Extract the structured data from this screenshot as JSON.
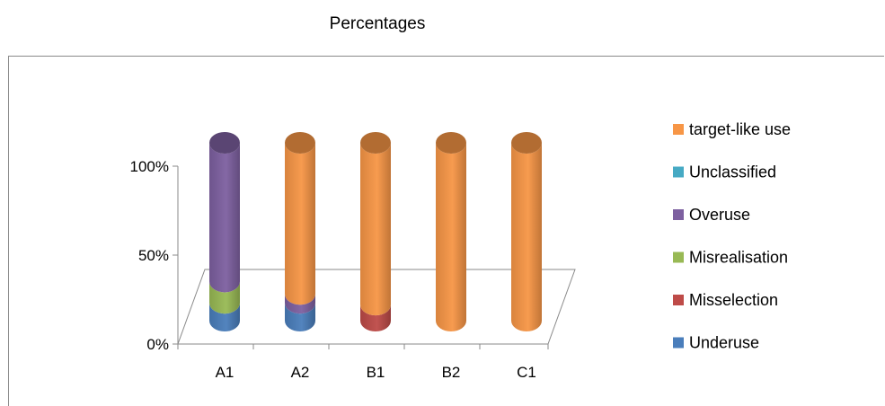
{
  "chart_data": {
    "type": "bar",
    "title": "Percentages",
    "categories": [
      "A1",
      "A2",
      "B1",
      "B2",
      "C1"
    ],
    "y_ticks": [
      "0%",
      "50%",
      "100%"
    ],
    "ylim": [
      0,
      100
    ],
    "stacked": true,
    "series": [
      {
        "name": "Underuse",
        "color": "#4a7ebb",
        "values": [
          10,
          10,
          0,
          0,
          0
        ]
      },
      {
        "name": "Misselection",
        "color": "#be4b48",
        "values": [
          0,
          0,
          9,
          0,
          0
        ]
      },
      {
        "name": "Misrealisation",
        "color": "#98b954",
        "values": [
          12,
          0,
          0,
          0,
          0
        ]
      },
      {
        "name": "Overuse",
        "color": "#7d60a0",
        "values": [
          78,
          5,
          0,
          0,
          0
        ]
      },
      {
        "name": "Unclassified",
        "color": "#46aac4",
        "values": [
          0,
          0,
          0,
          0,
          0
        ]
      },
      {
        "name": "target-like use",
        "color": "#f79646",
        "values": [
          0,
          85,
          91,
          100,
          100
        ]
      }
    ],
    "legend_position": "right",
    "grid": false
  }
}
